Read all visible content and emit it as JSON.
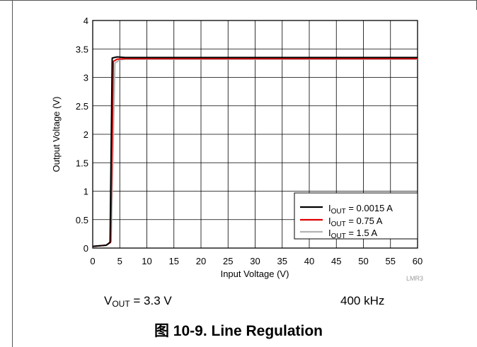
{
  "chart_data": {
    "type": "line",
    "title": "",
    "xlabel": "Input Voltage (V)",
    "ylabel": "Output Voltage (V)",
    "xlim": [
      0,
      60
    ],
    "ylim": [
      0,
      4
    ],
    "xticks": [
      0,
      5,
      10,
      15,
      20,
      25,
      30,
      35,
      40,
      45,
      50,
      55,
      60
    ],
    "yticks": [
      0,
      0.5,
      1,
      1.5,
      2,
      2.5,
      3,
      3.5,
      4
    ],
    "grid": true,
    "legend_position": "bottom-right",
    "series": [
      {
        "name": "I_OUT = 0.0015 A",
        "color": "#000000",
        "x": [
          0,
          2.5,
          3.2,
          3.6,
          4.5,
          6,
          60
        ],
        "y": [
          0.03,
          0.05,
          0.1,
          3.34,
          3.36,
          3.35,
          3.35
        ]
      },
      {
        "name": "I_OUT = 0.75 A",
        "color": "#e00000",
        "x": [
          0,
          2.5,
          3.3,
          3.8,
          4.5,
          6,
          60
        ],
        "y": [
          0.03,
          0.05,
          0.1,
          3.28,
          3.32,
          3.33,
          3.33
        ]
      },
      {
        "name": "I_OUT = 1.5 A",
        "color": "#b4b4b4",
        "x": [
          0,
          2.5,
          3.4,
          4.1,
          5,
          6,
          60
        ],
        "y": [
          0.03,
          0.05,
          0.12,
          3.25,
          3.31,
          3.32,
          3.32
        ]
      }
    ],
    "legend": [
      {
        "main": "I",
        "sub": "OUT",
        "rest": " = 0.0015 A"
      },
      {
        "main": "I",
        "sub": "OUT",
        "rest": " = 0.75 A"
      },
      {
        "main": "I",
        "sub": "OUT",
        "rest": " = 1.5 A"
      }
    ],
    "watermark": "LMR3"
  },
  "conditions": {
    "vout_main": "V",
    "vout_sub": "OUT",
    "vout_rest": " = 3.3 V",
    "frequency": "400 kHz"
  },
  "caption": "图 10-9. Line Regulation"
}
